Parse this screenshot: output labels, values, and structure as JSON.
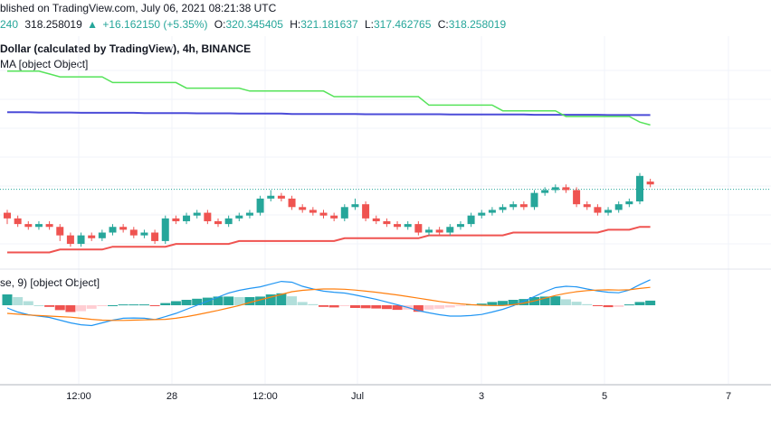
{
  "header": {
    "published": "blished on TradingView.com, July 06, 2021 08:21:38 UTC",
    "symbol_price": "240",
    "last": "318.258019",
    "change_arrow": "▲",
    "change": "+16.162150 (+5.35%)",
    "o_label": "O:",
    "o": "320.345405",
    "h_label": "H:",
    "h": "321.181637",
    "l_label": "L:",
    "l": "317.462765",
    "c_label": "C:",
    "c": "318.258019"
  },
  "legend": {
    "title": "Dollar (calculated by TradingView), 4h, BINANCE",
    "ma": "MA [object Object]",
    "macd": "se, 9) [object Object]"
  },
  "colors": {
    "up": "#26a69a",
    "down": "#ef5350",
    "upper_line": "#4b4bd8",
    "green_line": "#56e35a",
    "red_line": "#ef5350",
    "macd_line": "#2196f3",
    "signal_line": "#ff7f0e",
    "hist_up_strong": "#26a69a",
    "hist_up_weak": "#b2dfdb",
    "hist_down_strong": "#ef5350",
    "hist_down_weak": "#ffcdd2"
  },
  "chart_data": {
    "type": "candlestick",
    "x_ticks": [
      "12:00",
      "28",
      "12:00",
      "Jul",
      "3",
      "5",
      "7"
    ],
    "price_last_dotted": 318.258019,
    "candles": [
      [
        310,
        308,
        311,
        306
      ],
      [
        308,
        306,
        309,
        305
      ],
      [
        306,
        305,
        307,
        304
      ],
      [
        305,
        306,
        307,
        304
      ],
      [
        306,
        305,
        307,
        304
      ],
      [
        305,
        302,
        306,
        300
      ],
      [
        302,
        299,
        303,
        298
      ],
      [
        299,
        302,
        303,
        298
      ],
      [
        302,
        301,
        303,
        300
      ],
      [
        301,
        303,
        304,
        300
      ],
      [
        303,
        305,
        306,
        302
      ],
      [
        305,
        304,
        306,
        303
      ],
      [
        304,
        302,
        305,
        301
      ],
      [
        302,
        303,
        304,
        301
      ],
      [
        303,
        300,
        304,
        299
      ],
      [
        300,
        308,
        309,
        299
      ],
      [
        308,
        307,
        309,
        306
      ],
      [
        307,
        309,
        310,
        306
      ],
      [
        309,
        310,
        311,
        308
      ],
      [
        310,
        307,
        311,
        306
      ],
      [
        307,
        306,
        308,
        305
      ],
      [
        306,
        308,
        309,
        305
      ],
      [
        308,
        309,
        310,
        307
      ],
      [
        309,
        310,
        311,
        308
      ],
      [
        310,
        315,
        316,
        309
      ],
      [
        315,
        316,
        318,
        314
      ],
      [
        316,
        315,
        317,
        314
      ],
      [
        315,
        312,
        316,
        311
      ],
      [
        312,
        311,
        313,
        310
      ],
      [
        311,
        310,
        312,
        309
      ],
      [
        310,
        309,
        311,
        308
      ],
      [
        309,
        308,
        310,
        307
      ],
      [
        308,
        312,
        313,
        307
      ],
      [
        312,
        313,
        315,
        311
      ],
      [
        313,
        308,
        314,
        307
      ],
      [
        308,
        307,
        309,
        306
      ],
      [
        307,
        306,
        308,
        305
      ],
      [
        306,
        305,
        307,
        304
      ],
      [
        305,
        306,
        307,
        304
      ],
      [
        306,
        303,
        307,
        302
      ],
      [
        303,
        304,
        305,
        302
      ],
      [
        304,
        303,
        305,
        302
      ],
      [
        303,
        305,
        306,
        302
      ],
      [
        305,
        306,
        307,
        304
      ],
      [
        306,
        309,
        310,
        305
      ],
      [
        309,
        310,
        311,
        308
      ],
      [
        310,
        311,
        312,
        309
      ],
      [
        311,
        312,
        313,
        310
      ],
      [
        312,
        313,
        314,
        311
      ],
      [
        313,
        312,
        314,
        311
      ],
      [
        312,
        317,
        318,
        311
      ],
      [
        317,
        318,
        319,
        316
      ],
      [
        318,
        319,
        320,
        317
      ],
      [
        319,
        318,
        320,
        317
      ],
      [
        318,
        313,
        319,
        312
      ],
      [
        313,
        312,
        314,
        311
      ],
      [
        312,
        310,
        313,
        309
      ],
      [
        310,
        311,
        312,
        309
      ],
      [
        311,
        313,
        314,
        310
      ],
      [
        313,
        314,
        315,
        312
      ],
      [
        314,
        323,
        324,
        313
      ],
      [
        321,
        320,
        322,
        319
      ]
    ],
    "upper_line": [
      345.5,
      345.5,
      345.5,
      345.4,
      345.4,
      345.4,
      345.4,
      345.3,
      345.3,
      345.3,
      345.3,
      345.3,
      345.3,
      345.2,
      345.2,
      345.2,
      345.2,
      345.2,
      345.1,
      345.1,
      345.1,
      345.1,
      345.0,
      345.0,
      345.0,
      345.0,
      345.0,
      344.9,
      344.9,
      344.9,
      344.9,
      344.9,
      344.9,
      344.9,
      344.8,
      344.8,
      344.8,
      344.8,
      344.8,
      344.8,
      344.8,
      344.8,
      344.7,
      344.7,
      344.7,
      344.7,
      344.7,
      344.7,
      344.7,
      344.7,
      344.6,
      344.6,
      344.6,
      344.6,
      344.6,
      344.6,
      344.6,
      344.5,
      344.5,
      344.5,
      344.5,
      344.5
    ],
    "green_line": [
      360,
      360,
      360,
      360,
      359,
      358,
      358,
      358,
      358,
      358,
      356,
      356,
      356,
      356,
      356,
      356,
      356,
      354,
      354,
      354,
      354,
      354,
      354,
      353,
      353,
      353,
      353,
      353,
      353,
      353,
      353,
      351,
      351,
      351,
      351,
      351,
      351,
      351,
      351,
      351,
      348,
      348,
      348,
      348,
      348,
      348,
      348,
      346,
      346,
      346,
      346,
      346,
      346,
      344,
      344,
      344,
      344,
      344,
      344,
      344,
      342,
      341
    ],
    "red_line": [
      296,
      296,
      296,
      296,
      296,
      297,
      297,
      297,
      297,
      297,
      298,
      298,
      298,
      298,
      298,
      298,
      299,
      299,
      299,
      299,
      299,
      299,
      300,
      300,
      300,
      300,
      300,
      300,
      300,
      300,
      300,
      300,
      301,
      301,
      301,
      301,
      301,
      301,
      301,
      301,
      302,
      302,
      302,
      302,
      302,
      302,
      302,
      302,
      303,
      303,
      303,
      303,
      303,
      303,
      303,
      303,
      303,
      304,
      304,
      304,
      305,
      305
    ],
    "macd": {
      "hist": [
        4,
        3,
        1.5,
        0,
        -0.6,
        -1.8,
        -2.5,
        -2.2,
        -1.3,
        -0.3,
        0,
        0.3,
        0.3,
        0.3,
        -0.3,
        0.8,
        1.5,
        2,
        2.4,
        2.8,
        3.2,
        3.2,
        3,
        3,
        3.2,
        4,
        4.4,
        3.3,
        1.2,
        0.4,
        -0.6,
        -0.8,
        -0.3,
        -1,
        -1.1,
        -1.2,
        -1.4,
        -1.7,
        -1.6,
        -2.4,
        -1.6,
        -1.3,
        -0.8,
        -0.2,
        0.3,
        0.6,
        1.2,
        1.6,
        2,
        2.3,
        3,
        3.2,
        3.3,
        2.2,
        1.3,
        0.4,
        -0.3,
        -0.7,
        -0.6,
        0.3,
        1.2,
        1.7
      ],
      "macd_line": [
        -1,
        -2.5,
        -3.5,
        -4,
        -4.5,
        -5.5,
        -6.5,
        -7.2,
        -7.5,
        -6.5,
        -5.5,
        -4.8,
        -4.7,
        -4.8,
        -5.3,
        -4.2,
        -3,
        -1.5,
        0,
        1.5,
        3,
        4.5,
        5.5,
        6.2,
        6.8,
        7.8,
        8.8,
        8.5,
        7,
        6,
        5.2,
        4.8,
        4.5,
        3.8,
        3,
        2.2,
        1.2,
        0.2,
        -0.8,
        -2,
        -2.8,
        -3.5,
        -4,
        -4,
        -3.8,
        -3.4,
        -2.5,
        -1.5,
        -0.2,
        1.5,
        3.2,
        5,
        6.5,
        7,
        6.8,
        6,
        5.3,
        4.8,
        4.6,
        5.6,
        7.6,
        9.4
      ],
      "signal_line": [
        -3,
        -3.3,
        -3.6,
        -3.8,
        -4,
        -4.2,
        -4.4,
        -4.8,
        -5.2,
        -5.5,
        -5.6,
        -5.6,
        -5.5,
        -5.4,
        -5.3,
        -5.2,
        -4.8,
        -4.2,
        -3.5,
        -2.7,
        -1.9,
        -1,
        -0.1,
        1,
        2,
        3,
        4,
        5,
        5.5,
        5.8,
        6,
        6,
        5.9,
        5.6,
        5.2,
        4.8,
        4.3,
        3.8,
        3.2,
        2.6,
        2,
        1.4,
        0.9,
        0.5,
        0.2,
        0,
        -0.1,
        -0.1,
        0.2,
        0.8,
        1.6,
        2.6,
        3.6,
        4.4,
        5,
        5.4,
        5.6,
        5.7,
        5.6,
        5.7,
        6.2,
        6.6
      ]
    }
  }
}
